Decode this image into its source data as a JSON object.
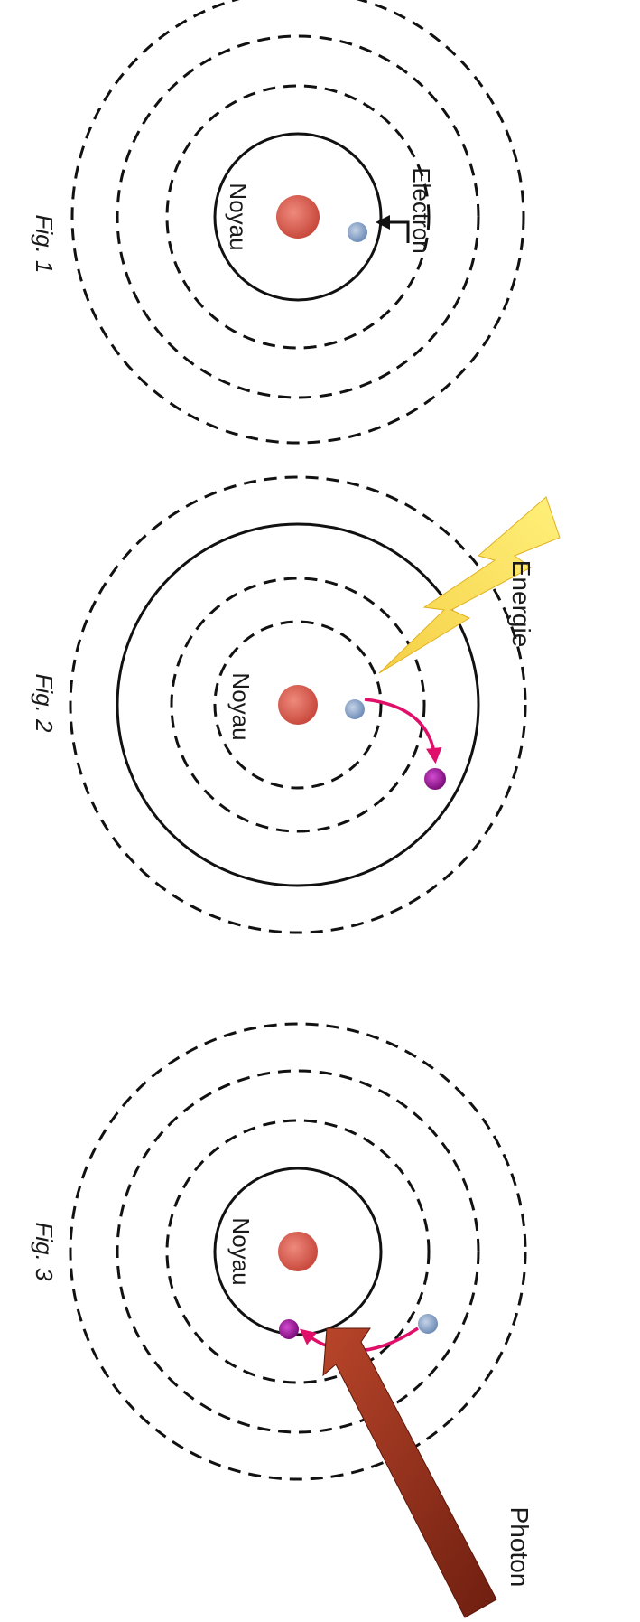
{
  "figures": [
    {
      "label": "Fig. 1",
      "nucleus_label": "Noyau",
      "electron_label": "Electron"
    },
    {
      "label": "Fig. 2",
      "nucleus_label": "Noyau",
      "energy_label": "Energie"
    },
    {
      "label": "Fig. 3",
      "nucleus_label": "Noyau",
      "photon_label": "Photon"
    }
  ],
  "colors": {
    "nucleus": "#d9534f",
    "electron": "#8fa8cc",
    "excited_electron": "#a0159a",
    "transition_arrow": "#e0106a",
    "energy_bolt": "#f2c230",
    "photon_arrow": "#8e2a18"
  }
}
